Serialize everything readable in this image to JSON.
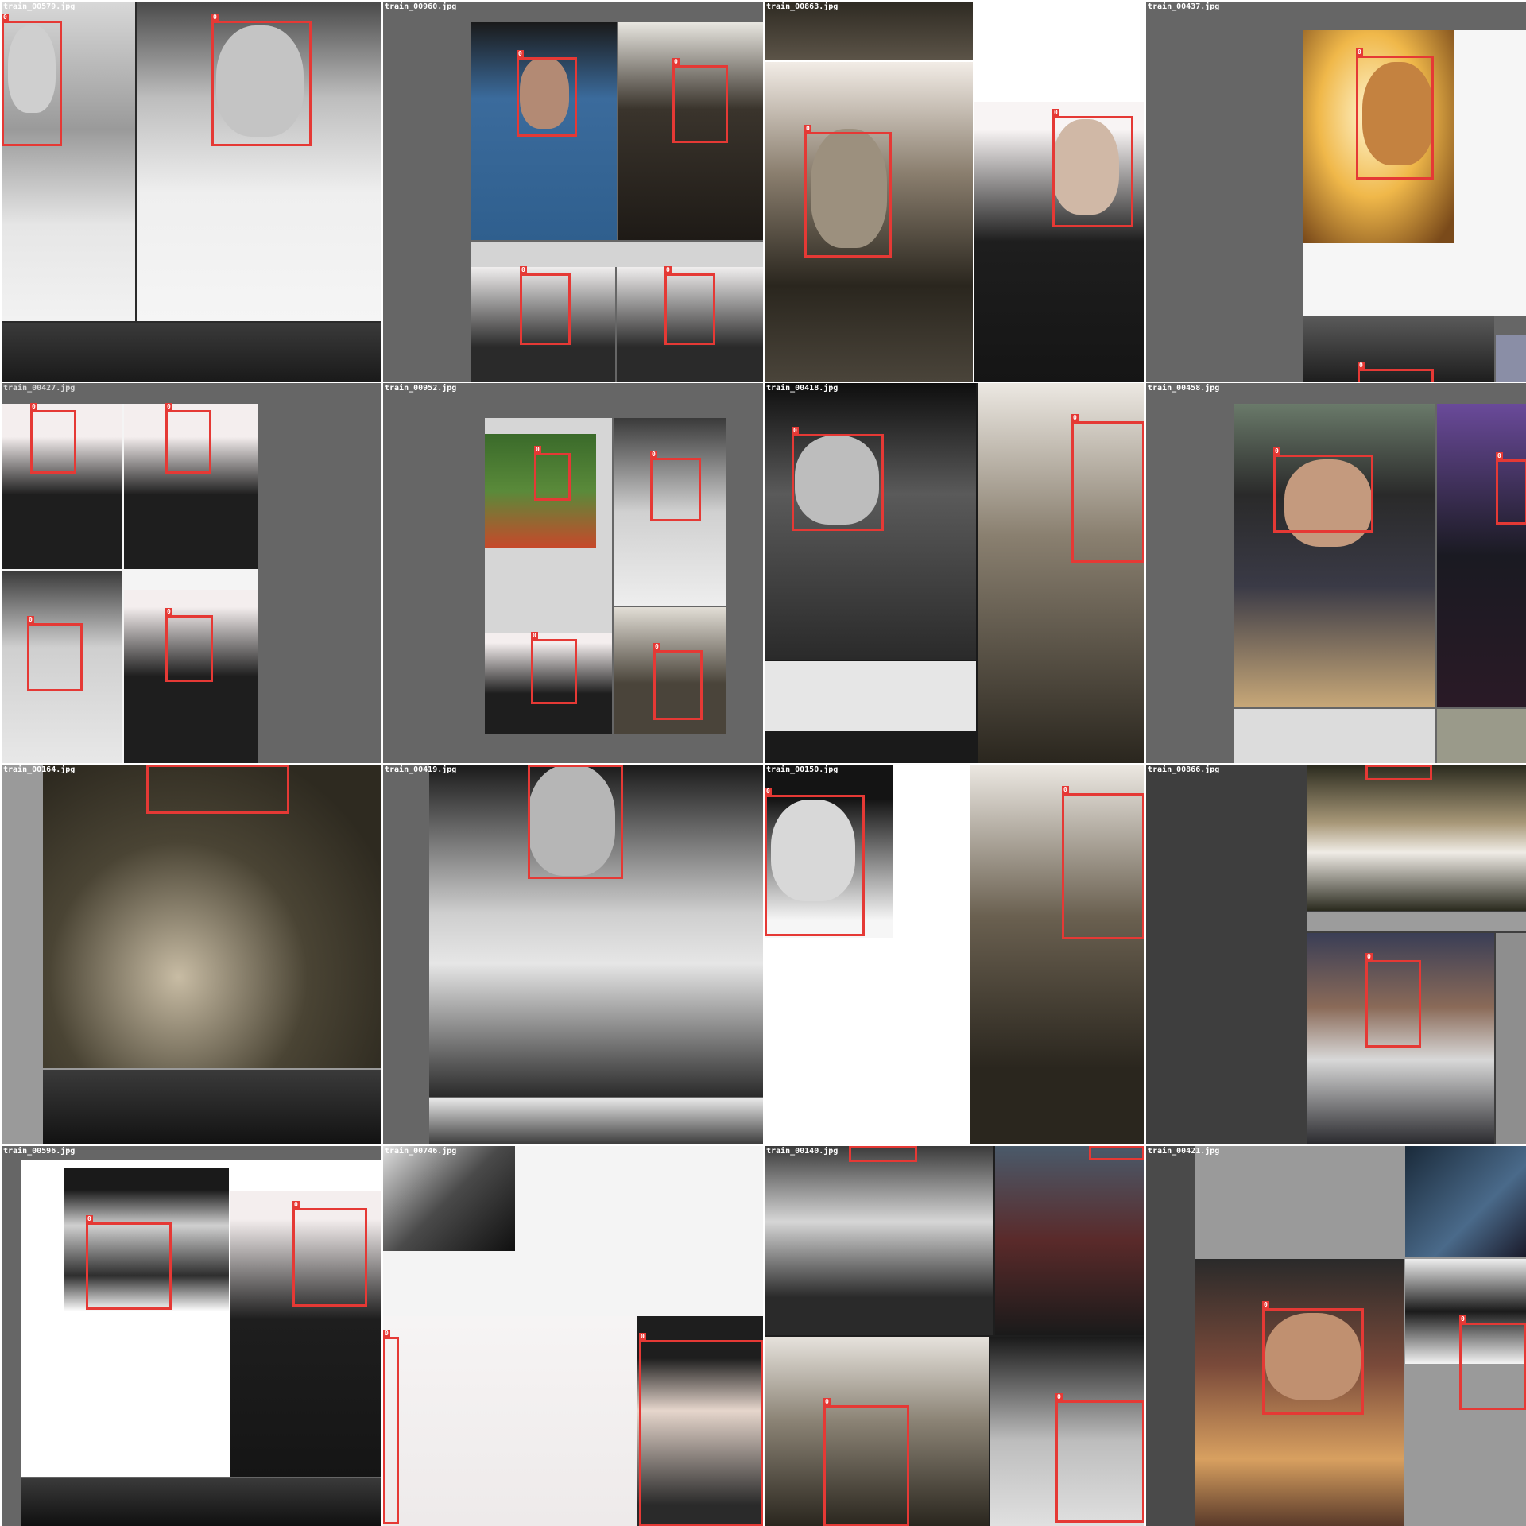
{
  "mosaic": {
    "bbox_class_label": "0",
    "box_color": "#e53935",
    "tiles": [
      {
        "filename": "train_00579.jpg"
      },
      {
        "filename": "train_00960.jpg"
      },
      {
        "filename": "train_00863.jpg"
      },
      {
        "filename": "train_00437.jpg"
      },
      {
        "filename": "train_00427.jpg"
      },
      {
        "filename": "train_00952.jpg"
      },
      {
        "filename": "train_00418.jpg"
      },
      {
        "filename": "train_00458.jpg"
      },
      {
        "filename": "train_00164.jpg"
      },
      {
        "filename": "train_00419.jpg"
      },
      {
        "filename": "train_00150.jpg"
      },
      {
        "filename": "train_00866.jpg"
      },
      {
        "filename": "train_00596.jpg"
      },
      {
        "filename": "train_00746.jpg"
      },
      {
        "filename": "train_00140.jpg"
      },
      {
        "filename": "train_00421.jpg"
      }
    ]
  }
}
